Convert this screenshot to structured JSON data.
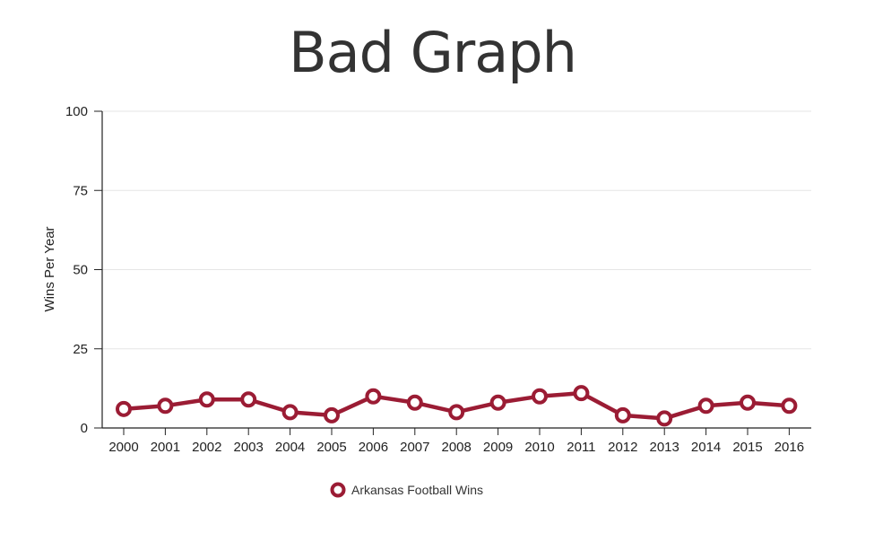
{
  "chart_data": {
    "type": "line",
    "title": "Bad Graph",
    "xlabel": "",
    "ylabel": "Wins Per Year",
    "x": [
      "2000",
      "2001",
      "2002",
      "2003",
      "2004",
      "2005",
      "2006",
      "2007",
      "2008",
      "2009",
      "2010",
      "2011",
      "2012",
      "2013",
      "2014",
      "2015",
      "2016"
    ],
    "series": [
      {
        "name": "Arkansas Football Wins",
        "values": [
          6,
          7,
          9,
          9,
          5,
          4,
          10,
          8,
          5,
          8,
          10,
          11,
          4,
          3,
          7,
          8,
          7
        ]
      }
    ],
    "ylim": [
      0,
      100
    ],
    "yticks": [
      "0",
      "25",
      "50",
      "75",
      "100"
    ],
    "grid": true,
    "legend": "bottom-left",
    "colors": {
      "series": "#9b1c34",
      "grid": "#e6e6e6",
      "axis": "#222222",
      "title": "#333333"
    }
  }
}
